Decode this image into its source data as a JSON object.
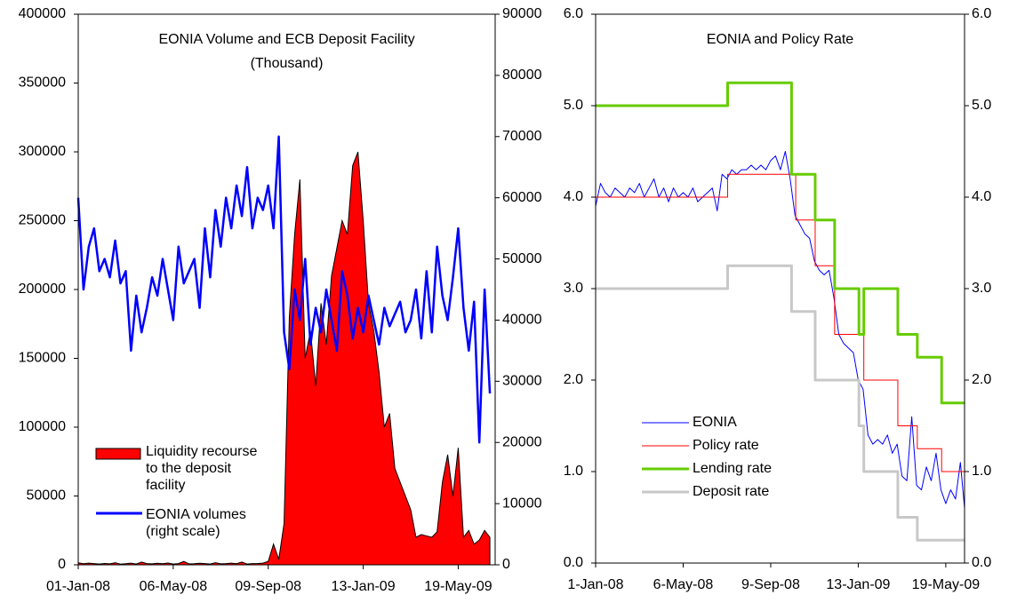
{
  "chart_data": [
    {
      "type": "area",
      "title": "EONIA Volume and ECB Deposit Facility",
      "subtitle": "(Thousand)",
      "legend": "lower left",
      "x": [
        "2008-01-01",
        "2008-01-08",
        "2008-01-15",
        "2008-01-22",
        "2008-01-29",
        "2008-02-05",
        "2008-02-12",
        "2008-02-19",
        "2008-02-26",
        "2008-03-04",
        "2008-03-11",
        "2008-03-18",
        "2008-03-25",
        "2008-04-01",
        "2008-04-08",
        "2008-04-15",
        "2008-04-22",
        "2008-04-29",
        "2008-05-06",
        "2008-05-13",
        "2008-05-20",
        "2008-05-27",
        "2008-06-03",
        "2008-06-10",
        "2008-06-17",
        "2008-06-24",
        "2008-07-01",
        "2008-07-08",
        "2008-07-15",
        "2008-07-22",
        "2008-07-29",
        "2008-08-05",
        "2008-08-12",
        "2008-08-19",
        "2008-08-26",
        "2008-09-02",
        "2008-09-09",
        "2008-09-16",
        "2008-09-23",
        "2008-09-30",
        "2008-10-07",
        "2008-10-14",
        "2008-10-21",
        "2008-10-28",
        "2008-11-04",
        "2008-11-11",
        "2008-11-18",
        "2008-11-25",
        "2008-12-02",
        "2008-12-09",
        "2008-12-16",
        "2008-12-23",
        "2008-12-30",
        "2009-01-06",
        "2009-01-13",
        "2009-01-20",
        "2009-01-27",
        "2009-02-03",
        "2009-02-10",
        "2009-02-17",
        "2009-02-24",
        "2009-03-03",
        "2009-03-10",
        "2009-03-17",
        "2009-03-24",
        "2009-03-31",
        "2009-04-07",
        "2009-04-14",
        "2009-04-21",
        "2009-04-28",
        "2009-05-05",
        "2009-05-12",
        "2009-05-19",
        "2009-05-26",
        "2009-06-02",
        "2009-06-09",
        "2009-06-16",
        "2009-06-23",
        "2009-06-30"
      ],
      "xlim": [
        "2008-01-01",
        "2009-07-07"
      ],
      "xticks": [
        {
          "value": "2008-01-01",
          "label": "01-Jan-08"
        },
        {
          "value": "2008-05-06",
          "label": "06-May-08"
        },
        {
          "value": "2008-09-09",
          "label": "09-Sep-08"
        },
        {
          "value": "2009-01-13",
          "label": "13-Jan-09"
        },
        {
          "value": "2009-05-19",
          "label": "19-May-09"
        }
      ],
      "ylim": [
        0,
        400000
      ],
      "yticks": [
        0,
        50000,
        100000,
        150000,
        200000,
        250000,
        300000,
        350000,
        400000
      ],
      "y2lim": [
        0,
        90000
      ],
      "y2ticks": [
        0,
        10000,
        20000,
        30000,
        40000,
        50000,
        60000,
        70000,
        80000,
        90000
      ],
      "series": [
        {
          "name": "Liquidity recourse to the deposit facility",
          "type": "area",
          "color": "#ff0000",
          "values": [
            1500,
            800,
            1200,
            900,
            600,
            1000,
            700,
            1500,
            500,
            800,
            1200,
            600,
            2000,
            900,
            700,
            1100,
            800,
            1300,
            600,
            900,
            2500,
            700,
            800,
            1100,
            900,
            600,
            1500,
            700,
            900,
            1200,
            800,
            2000,
            600,
            900,
            1000,
            1200,
            2500,
            15000,
            4000,
            30000,
            180000,
            240000,
            280000,
            150000,
            170000,
            130000,
            190000,
            160000,
            210000,
            230000,
            250000,
            240000,
            290000,
            300000,
            250000,
            190000,
            170000,
            140000,
            100000,
            110000,
            70000,
            60000,
            50000,
            40000,
            20000,
            22000,
            21000,
            20000,
            24000,
            60000,
            80000,
            50000,
            85000,
            20000,
            25000,
            15000,
            18000,
            25000,
            20000
          ]
        },
        {
          "name": "EONIA volumes (right scale)",
          "type": "line",
          "axis": "y2",
          "color": "#0000ff",
          "values": [
            60000,
            45000,
            52000,
            55000,
            48000,
            50000,
            47000,
            53000,
            46000,
            48000,
            35000,
            44000,
            38000,
            42000,
            47000,
            44000,
            50000,
            45000,
            40000,
            52000,
            46000,
            48000,
            50000,
            42000,
            55000,
            47000,
            58000,
            52000,
            60000,
            55000,
            62000,
            57000,
            65000,
            55000,
            60000,
            58000,
            62000,
            55000,
            70000,
            38000,
            32000,
            45000,
            40000,
            50000,
            36000,
            42000,
            38000,
            45000,
            40000,
            35000,
            48000,
            44000,
            37000,
            42000,
            38000,
            44000,
            40000,
            36000,
            42000,
            39000,
            41000,
            43000,
            38000,
            40000,
            45000,
            37000,
            48000,
            38000,
            52000,
            44000,
            40000,
            47000,
            55000,
            42000,
            35000,
            43000,
            20000,
            45000,
            28000
          ]
        }
      ]
    },
    {
      "type": "line",
      "title": "EONIA and Policy Rate",
      "legend": "lower left",
      "xlim": [
        "2008-01-01",
        "2009-06-15"
      ],
      "xticks": [
        {
          "value": "2008-01-01",
          "label": "1-Jan-08"
        },
        {
          "value": "2008-05-06",
          "label": "6-May-08"
        },
        {
          "value": "2008-09-09",
          "label": "9-Sep-08"
        },
        {
          "value": "2009-01-13",
          "label": "13-Jan-09"
        },
        {
          "value": "2009-05-19",
          "label": "19-May-09"
        }
      ],
      "ylim": [
        0,
        6
      ],
      "yticks": [
        {
          "value": 0,
          "label": "0.0"
        },
        {
          "value": 1,
          "label": "1.0"
        },
        {
          "value": 2,
          "label": "2.0"
        },
        {
          "value": 3,
          "label": "3.0"
        },
        {
          "value": 4,
          "label": "4.0"
        },
        {
          "value": 5,
          "label": "5.0"
        },
        {
          "value": 6,
          "label": "6.0"
        }
      ],
      "y2lim": [
        0,
        6
      ],
      "y2ticks": [
        {
          "value": 0,
          "label": "0.0"
        },
        {
          "value": 1,
          "label": "1.0"
        },
        {
          "value": 2,
          "label": "2.0"
        },
        {
          "value": 3,
          "label": "3.0"
        },
        {
          "value": 4,
          "label": "4.0"
        },
        {
          "value": 5,
          "label": "5.0"
        },
        {
          "value": 6,
          "label": "6.0"
        }
      ],
      "series": [
        {
          "name": "EONIA",
          "color": "#0000ff",
          "line_width": 1,
          "x": [
            "2008-01-01",
            "2008-01-08",
            "2008-01-15",
            "2008-01-22",
            "2008-01-29",
            "2008-02-05",
            "2008-02-12",
            "2008-02-19",
            "2008-02-26",
            "2008-03-04",
            "2008-03-11",
            "2008-03-18",
            "2008-03-25",
            "2008-04-01",
            "2008-04-08",
            "2008-04-15",
            "2008-04-22",
            "2008-04-29",
            "2008-05-06",
            "2008-05-13",
            "2008-05-20",
            "2008-05-27",
            "2008-06-03",
            "2008-06-10",
            "2008-06-17",
            "2008-06-24",
            "2008-07-01",
            "2008-07-08",
            "2008-07-15",
            "2008-07-22",
            "2008-07-29",
            "2008-08-05",
            "2008-08-12",
            "2008-08-19",
            "2008-08-26",
            "2008-09-02",
            "2008-09-09",
            "2008-09-16",
            "2008-09-23",
            "2008-09-30",
            "2008-10-07",
            "2008-10-14",
            "2008-10-21",
            "2008-10-28",
            "2008-11-04",
            "2008-11-11",
            "2008-11-18",
            "2008-11-25",
            "2008-12-02",
            "2008-12-09",
            "2008-12-16",
            "2008-12-23",
            "2008-12-30",
            "2009-01-06",
            "2009-01-13",
            "2009-01-20",
            "2009-01-27",
            "2009-02-03",
            "2009-02-10",
            "2009-02-17",
            "2009-02-24",
            "2009-03-03",
            "2009-03-10",
            "2009-03-17",
            "2009-03-24",
            "2009-03-31",
            "2009-04-07",
            "2009-04-14",
            "2009-04-21",
            "2009-04-28",
            "2009-05-05",
            "2009-05-12",
            "2009-05-19",
            "2009-05-26",
            "2009-06-02",
            "2009-06-09",
            "2009-06-15"
          ],
          "values": [
            3.9,
            4.15,
            4.05,
            4.0,
            4.1,
            4.05,
            4.0,
            4.1,
            4.05,
            4.15,
            4.0,
            4.1,
            4.2,
            4.0,
            4.1,
            3.95,
            4.1,
            4.0,
            4.05,
            4.0,
            4.1,
            3.95,
            4.0,
            4.05,
            4.1,
            3.85,
            4.25,
            4.2,
            4.3,
            4.25,
            4.3,
            4.3,
            4.35,
            4.3,
            4.35,
            4.3,
            4.4,
            4.45,
            4.3,
            4.5,
            4.2,
            3.8,
            3.7,
            3.6,
            3.55,
            3.3,
            3.2,
            3.15,
            3.2,
            2.9,
            2.5,
            2.4,
            2.35,
            2.3,
            2.0,
            1.9,
            1.4,
            1.3,
            1.35,
            1.3,
            1.4,
            1.2,
            1.3,
            0.95,
            0.9,
            1.6,
            0.85,
            0.8,
            1.05,
            0.9,
            1.2,
            0.8,
            0.65,
            0.8,
            0.7,
            1.1,
            0.6
          ]
        },
        {
          "name": "Policy rate",
          "color": "#ff0000",
          "line_width": 1,
          "x": [
            "2008-01-01",
            "2008-07-09",
            "2008-07-09",
            "2008-10-15",
            "2008-10-15",
            "2008-11-12",
            "2008-11-12",
            "2008-12-10",
            "2008-12-10",
            "2009-01-21",
            "2009-01-21",
            "2009-03-11",
            "2009-03-11",
            "2009-04-08",
            "2009-04-08",
            "2009-05-13",
            "2009-05-13",
            "2009-06-15"
          ],
          "values": [
            4,
            4,
            4.25,
            4.25,
            3.75,
            3.75,
            3.25,
            3.25,
            2.5,
            2.5,
            2,
            2,
            1.5,
            1.5,
            1.25,
            1.25,
            1,
            1
          ]
        },
        {
          "name": "Lending rate",
          "color": "#66cc00",
          "line_width": 3,
          "x": [
            "2008-01-01",
            "2008-07-09",
            "2008-07-09",
            "2008-10-09",
            "2008-10-09",
            "2008-11-12",
            "2008-11-12",
            "2008-12-10",
            "2008-12-10",
            "2009-01-14",
            "2009-01-14",
            "2009-01-21",
            "2009-01-21",
            "2009-03-11",
            "2009-03-11",
            "2009-04-08",
            "2009-04-08",
            "2009-05-13",
            "2009-05-13",
            "2009-06-15"
          ],
          "values": [
            5,
            5,
            5.25,
            5.25,
            4.25,
            4.25,
            3.75,
            3.75,
            3,
            3,
            2.5,
            2.5,
            3,
            3,
            2.5,
            2.5,
            2.25,
            2.25,
            1.75,
            1.75
          ]
        },
        {
          "name": "Deposit rate",
          "color": "#c8c8c8",
          "line_width": 3,
          "x": [
            "2008-01-01",
            "2008-07-09",
            "2008-07-09",
            "2008-10-09",
            "2008-10-09",
            "2008-11-12",
            "2008-11-12",
            "2009-01-14",
            "2009-01-14",
            "2009-01-21",
            "2009-01-21",
            "2009-03-11",
            "2009-03-11",
            "2009-04-08",
            "2009-04-08",
            "2009-06-15"
          ],
          "values": [
            3,
            3,
            3.25,
            3.25,
            2.75,
            2.75,
            2,
            2,
            1.5,
            1.5,
            1,
            1,
            0.5,
            0.5,
            0.25,
            0.25
          ]
        }
      ]
    }
  ]
}
